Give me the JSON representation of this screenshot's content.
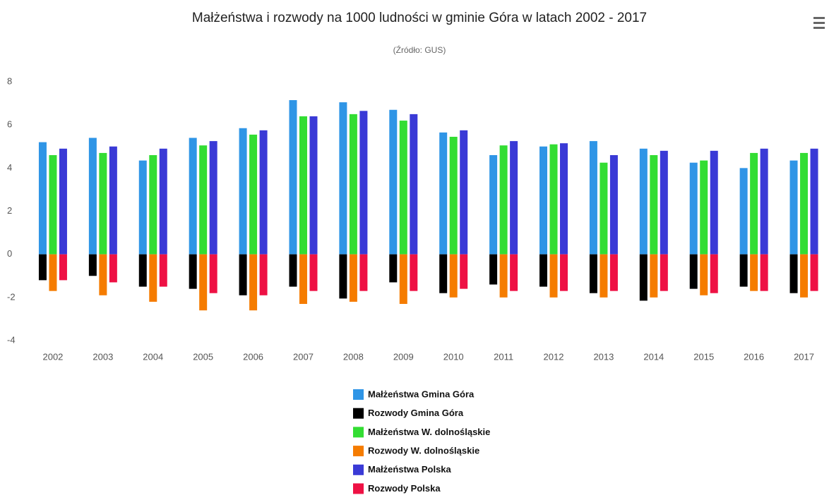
{
  "chart_data": {
    "type": "bar",
    "title": "Małżeństwa i rozwody na 1000 ludności w gminie Góra w latach 2002 - 2017",
    "subtitle": "(Źródło: GUS)",
    "categories": [
      "2002",
      "2003",
      "2004",
      "2005",
      "2006",
      "2007",
      "2008",
      "2009",
      "2010",
      "2011",
      "2012",
      "2013",
      "2014",
      "2015",
      "2016",
      "2017"
    ],
    "series": [
      {
        "name": "Małżeństwa Gmina Góra",
        "color": "#2f95e6",
        "values": [
          5.2,
          5.4,
          4.35,
          5.4,
          5.85,
          7.15,
          7.05,
          6.7,
          5.65,
          4.6,
          5.0,
          5.25,
          4.9,
          4.25,
          4.0,
          4.35
        ]
      },
      {
        "name": "Rozwody Gmina Góra",
        "color": "#000000",
        "values": [
          -1.2,
          -1.0,
          -1.5,
          -1.6,
          -1.9,
          -1.5,
          -2.05,
          -1.3,
          -1.8,
          -1.4,
          -1.5,
          -1.8,
          -2.15,
          -1.6,
          -1.5,
          -1.8
        ]
      },
      {
        "name": "Małżeństwa W. dolnośląskie",
        "color": "#33dd33",
        "values": [
          4.6,
          4.7,
          4.6,
          5.05,
          5.55,
          6.4,
          6.5,
          6.2,
          5.45,
          5.05,
          5.1,
          4.25,
          4.6,
          4.35,
          4.7,
          4.7
        ]
      },
      {
        "name": "Rozwody W. dolnośląskie",
        "color": "#f57c00",
        "values": [
          -1.7,
          -1.9,
          -2.2,
          -2.6,
          -2.6,
          -2.3,
          -2.2,
          -2.3,
          -2.0,
          -2.0,
          -2.0,
          -2.0,
          -2.0,
          -1.9,
          -1.7,
          -2.0
        ]
      },
      {
        "name": "Małżeństwa Polska",
        "color": "#3a3ad6",
        "values": [
          4.9,
          5.0,
          4.9,
          5.25,
          5.75,
          6.4,
          6.65,
          6.5,
          5.75,
          5.25,
          5.15,
          4.6,
          4.8,
          4.8,
          4.9,
          4.9
        ]
      },
      {
        "name": "Rozwody Polska",
        "color": "#ee1144",
        "values": [
          -1.2,
          -1.3,
          -1.5,
          -1.8,
          -1.9,
          -1.7,
          -1.7,
          -1.7,
          -1.6,
          -1.7,
          -1.7,
          -1.7,
          -1.7,
          -1.8,
          -1.7,
          -1.7
        ]
      }
    ],
    "ylim": [
      -4,
      8
    ],
    "yticks": [
      -4,
      -2,
      0,
      2,
      4,
      6,
      8
    ],
    "grid": false
  }
}
